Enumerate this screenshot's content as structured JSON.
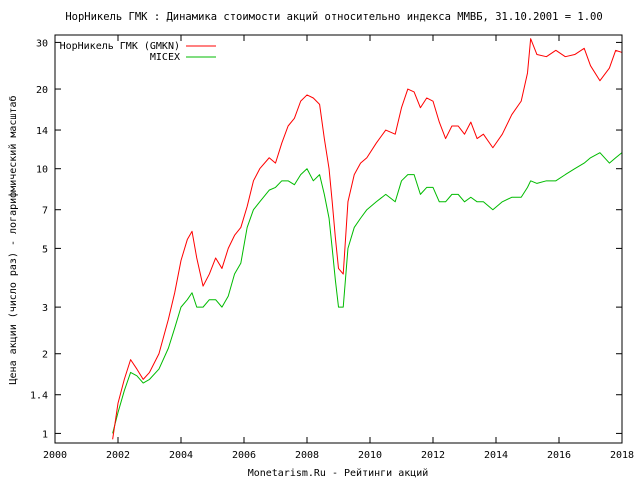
{
  "chart_data": {
    "type": "line",
    "title": "НорНикель ГМК : Динамика стоимости акций относительно индекса ММВБ, 31.10.2001 = 1.00",
    "xlabel": "Monetarism.Ru - Рейтинги акций",
    "ylabel": "Цена акции (число раз) - логарифмический масштаб",
    "y_scale": "log",
    "xlim": [
      2000,
      2018
    ],
    "ylim": [
      0.92,
      32
    ],
    "x_ticks": [
      2000,
      2002,
      2004,
      2006,
      2008,
      2010,
      2012,
      2014,
      2016,
      2018
    ],
    "x_tick_labels": [
      "2000",
      "2002",
      "2004",
      "2006",
      "2008",
      "2010",
      "2012",
      "2014",
      "2016",
      "2018"
    ],
    "y_ticks": [
      1,
      1.4,
      2,
      3,
      5,
      7,
      10,
      14,
      20,
      30
    ],
    "y_tick_labels": [
      "1",
      "1.4",
      "2",
      "3",
      "5",
      "7",
      "10",
      "14",
      "20",
      "30"
    ],
    "grid": false,
    "legend_position": "top-left",
    "series": [
      {
        "name": "НорНикель ГМК (GMKN)",
        "color": "#ff0000",
        "x": [
          2001.83,
          2002.0,
          2002.2,
          2002.4,
          2002.6,
          2002.8,
          2003.0,
          2003.3,
          2003.6,
          2003.8,
          2004.0,
          2004.2,
          2004.35,
          2004.5,
          2004.7,
          2004.9,
          2005.1,
          2005.3,
          2005.5,
          2005.7,
          2005.9,
          2006.1,
          2006.3,
          2006.5,
          2006.8,
          2007.0,
          2007.2,
          2007.4,
          2007.6,
          2007.8,
          2008.0,
          2008.2,
          2008.4,
          2008.55,
          2008.7,
          2008.8,
          2008.9,
          2009.0,
          2009.15,
          2009.3,
          2009.5,
          2009.7,
          2009.9,
          2010.2,
          2010.5,
          2010.8,
          2011.0,
          2011.2,
          2011.4,
          2011.6,
          2011.8,
          2012.0,
          2012.2,
          2012.4,
          2012.6,
          2012.8,
          2013.0,
          2013.2,
          2013.4,
          2013.6,
          2013.9,
          2014.2,
          2014.5,
          2014.8,
          2015.0,
          2015.1,
          2015.3,
          2015.6,
          2015.9,
          2016.2,
          2016.5,
          2016.8,
          2017.0,
          2017.3,
          2017.6,
          2017.8,
          2018.0
        ],
        "y": [
          0.95,
          1.3,
          1.6,
          1.9,
          1.75,
          1.6,
          1.7,
          2.0,
          2.7,
          3.4,
          4.5,
          5.4,
          5.8,
          4.6,
          3.6,
          4.0,
          4.6,
          4.2,
          5.0,
          5.6,
          6.0,
          7.2,
          9.0,
          10.0,
          11.0,
          10.5,
          12.5,
          14.5,
          15.5,
          18.0,
          19.0,
          18.5,
          17.5,
          13.0,
          10.0,
          7.5,
          5.5,
          4.2,
          4.0,
          7.5,
          9.5,
          10.5,
          11.0,
          12.5,
          14.0,
          13.5,
          17.0,
          20.0,
          19.5,
          17.0,
          18.5,
          18.0,
          15.0,
          13.0,
          14.5,
          14.5,
          13.5,
          15.0,
          13.0,
          13.5,
          12.0,
          13.5,
          16.0,
          18.0,
          23.0,
          31.0,
          27.0,
          26.5,
          28.0,
          26.5,
          27.0,
          28.5,
          24.5,
          21.5,
          24.0,
          28.0,
          27.5
        ]
      },
      {
        "name": "MICEX",
        "color": "#00bb00",
        "x": [
          2001.83,
          2002.0,
          2002.2,
          2002.4,
          2002.6,
          2002.8,
          2003.0,
          2003.3,
          2003.6,
          2003.8,
          2004.0,
          2004.2,
          2004.35,
          2004.5,
          2004.7,
          2004.9,
          2005.1,
          2005.3,
          2005.5,
          2005.7,
          2005.9,
          2006.1,
          2006.3,
          2006.5,
          2006.8,
          2007.0,
          2007.2,
          2007.4,
          2007.6,
          2007.8,
          2008.0,
          2008.2,
          2008.4,
          2008.55,
          2008.7,
          2008.8,
          2008.9,
          2009.0,
          2009.15,
          2009.3,
          2009.5,
          2009.7,
          2009.9,
          2010.2,
          2010.5,
          2010.8,
          2011.0,
          2011.2,
          2011.4,
          2011.6,
          2011.8,
          2012.0,
          2012.2,
          2012.4,
          2012.6,
          2012.8,
          2013.0,
          2013.2,
          2013.4,
          2013.6,
          2013.9,
          2014.2,
          2014.5,
          2014.8,
          2015.0,
          2015.1,
          2015.3,
          2015.6,
          2015.9,
          2016.2,
          2016.5,
          2016.8,
          2017.0,
          2017.3,
          2017.6,
          2017.8,
          2018.0
        ],
        "y": [
          1.0,
          1.2,
          1.45,
          1.7,
          1.65,
          1.55,
          1.6,
          1.75,
          2.1,
          2.5,
          3.0,
          3.2,
          3.4,
          3.0,
          3.0,
          3.2,
          3.2,
          3.0,
          3.3,
          4.0,
          4.4,
          6.0,
          7.0,
          7.5,
          8.3,
          8.5,
          9.0,
          9.0,
          8.7,
          9.5,
          10.0,
          9.0,
          9.5,
          8.0,
          6.5,
          5.0,
          3.8,
          3.0,
          3.0,
          5.0,
          6.0,
          6.5,
          7.0,
          7.5,
          8.0,
          7.5,
          9.0,
          9.5,
          9.5,
          8.0,
          8.5,
          8.5,
          7.5,
          7.5,
          8.0,
          8.0,
          7.5,
          7.8,
          7.5,
          7.5,
          7.0,
          7.5,
          7.8,
          7.8,
          8.5,
          9.0,
          8.8,
          9.0,
          9.0,
          9.5,
          10.0,
          10.5,
          11.0,
          11.5,
          10.5,
          11.0,
          11.5
        ]
      }
    ]
  }
}
